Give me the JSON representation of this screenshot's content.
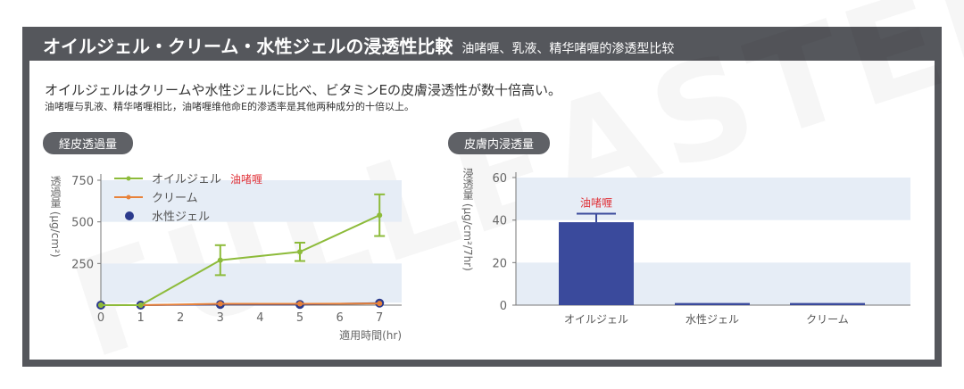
{
  "header": {
    "title": "オイルジェル・クリーム・水性ジェルの浸透性比較",
    "subtitle": "油啫喱、乳液、精华啫喱的渗透型比较"
  },
  "lead": {
    "jp": "オイルジェルはクリームや水性ジェルに比べ、ビタミンEの皮膚浸透性が数十倍高い。",
    "cn": "油啫喱与乳液、精华啫喱相比，油啫喱维他命E的渗透率是其他两种成分的十倍以上。"
  },
  "watermark": "FULLEASTER",
  "chart_data": [
    {
      "type": "line",
      "title": "経皮透過量",
      "ylabel": "透過量 (μg/cm²)",
      "xlabel": "適用時間(hr)",
      "xlim": [
        0,
        7.5
      ],
      "ylim": [
        0,
        750
      ],
      "xticks": [
        "0",
        "1",
        "2",
        "3",
        "4",
        "5",
        "6",
        "7"
      ],
      "yticks": [
        "250",
        "500",
        "750"
      ],
      "legend_position": "top-left",
      "series": [
        {
          "name": "オイルジェル",
          "annotation": "油啫喱",
          "color": "#8dbb3a",
          "x": [
            0,
            1,
            3,
            5,
            7
          ],
          "y": [
            0,
            0,
            270,
            320,
            540
          ],
          "err": [
            0,
            0,
            90,
            55,
            125
          ]
        },
        {
          "name": "クリーム",
          "color": "#e8823a",
          "x": [
            0,
            1,
            3,
            5,
            7
          ],
          "y": [
            0,
            0,
            8,
            8,
            10
          ]
        },
        {
          "name": "水性ジェル",
          "color": "#2b3a8c",
          "x": [
            0,
            1,
            3,
            5,
            7
          ],
          "y": [
            0,
            0,
            4,
            4,
            12
          ]
        }
      ]
    },
    {
      "type": "bar",
      "title": "皮膚内浸透量",
      "ylabel": "浸透量 (μg/cm²/7hr)",
      "ylim": [
        0,
        60
      ],
      "yticks": [
        "0",
        "20",
        "40",
        "60"
      ],
      "categories": [
        "オイルジェル",
        "水性ジェル",
        "クリーム"
      ],
      "values": [
        39,
        1,
        1
      ],
      "err": [
        4,
        0,
        0
      ],
      "annotation": "油啫喱",
      "color": "#3a4a9c"
    }
  ]
}
